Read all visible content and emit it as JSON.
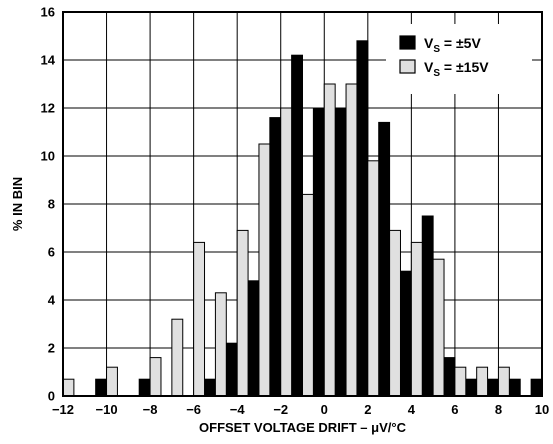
{
  "chart_data": {
    "type": "bar",
    "title": "",
    "xlabel": "OFFSET VOLTAGE DRIFT – μV/°C",
    "ylabel": "% IN BIN",
    "xlim": [
      -12,
      10
    ],
    "ylim": [
      0,
      16
    ],
    "bin_width": 1,
    "xticks": [
      "-12",
      "-10",
      "-8",
      "-6",
      "-4",
      "-2",
      "0",
      "2",
      "4",
      "6",
      "8",
      "10"
    ],
    "yticks": [
      "0",
      "2",
      "4",
      "6",
      "8",
      "10",
      "12",
      "14",
      "16"
    ],
    "grid": true,
    "legend_position": "top-right",
    "series": [
      {
        "legend_main": "V",
        "legend_sub": "S",
        "legend_rest": " = ±5V",
        "color": "#000000",
        "x": [
          -10.5,
          -8.5,
          -5.5,
          -4.5,
          -3.5,
          -2.5,
          -1.5,
          -0.5,
          0.5,
          1.5,
          2.5,
          3.5,
          4.5,
          5.5,
          6.5,
          7.5,
          8.5,
          9.5
        ],
        "values": [
          0.7,
          0.7,
          0.7,
          2.2,
          4.8,
          11.6,
          14.2,
          12.0,
          12.0,
          14.8,
          11.4,
          5.2,
          7.5,
          1.6,
          0.7,
          0.7,
          0.7,
          0.7
        ]
      },
      {
        "legend_main": "V",
        "legend_sub": "S",
        "legend_rest": " = ±15V",
        "color": "#e0e0e0",
        "x": [
          -11.5,
          -9.5,
          -7.5,
          -6.5,
          -5.5,
          -4.5,
          -3.5,
          -2.5,
          -1.5,
          -0.5,
          0.5,
          1.5,
          2.5,
          3.5,
          4.5,
          5.5,
          6.5,
          7.5,
          8.5
        ],
        "values": [
          0.7,
          1.2,
          1.6,
          3.2,
          6.4,
          4.3,
          6.9,
          10.5,
          12.0,
          8.4,
          13.0,
          13.0,
          9.8,
          6.9,
          6.4,
          5.7,
          1.2,
          1.2,
          1.2
        ]
      }
    ]
  }
}
